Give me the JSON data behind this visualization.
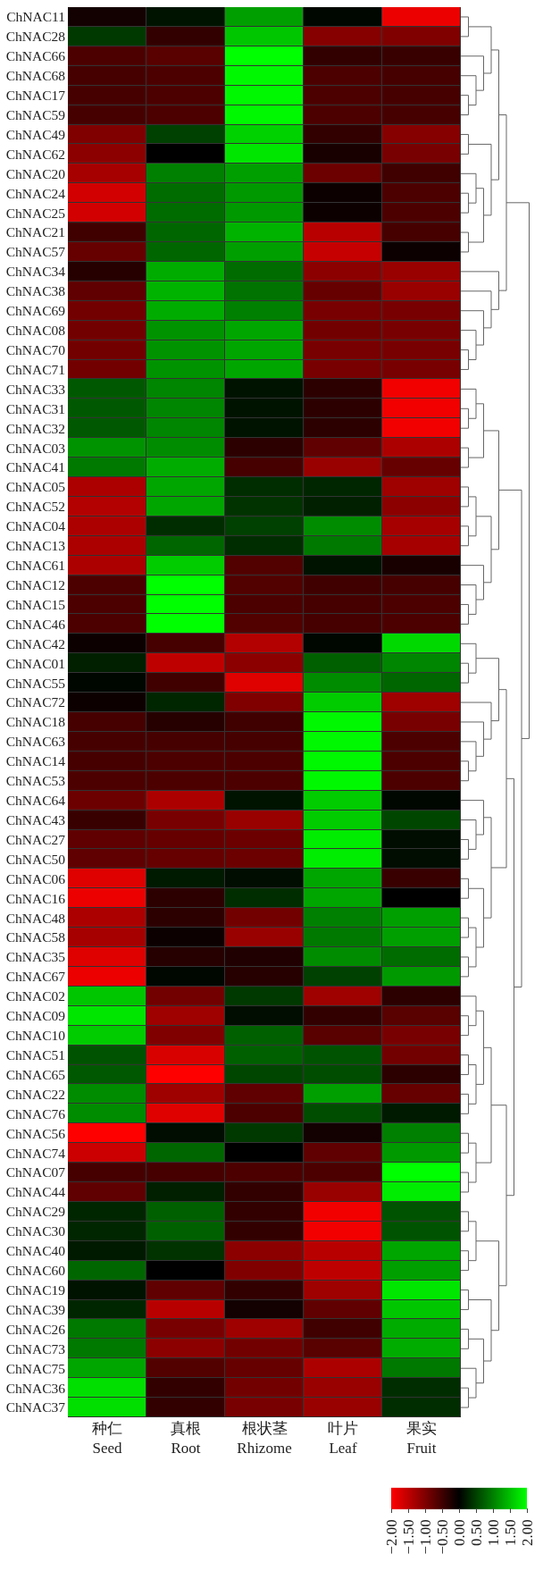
{
  "chart_data": {
    "type": "heatmap",
    "categories": [
      "种仁\nSeed",
      "真根\nRoot",
      "根状茎\nRhizome",
      "叶片\nLeaf",
      "果实\nFruit"
    ],
    "y_categories": [
      "ChNAC11",
      "ChNAC28",
      "ChNAC66",
      "ChNAC68",
      "ChNAC17",
      "ChNAC59",
      "ChNAC49",
      "ChNAC62",
      "ChNAC20",
      "ChNAC24",
      "ChNAC25",
      "ChNAC21",
      "ChNAC57",
      "ChNAC34",
      "ChNAC38",
      "ChNAC69",
      "ChNAC08",
      "ChNAC70",
      "ChNAC71",
      "ChNAC33",
      "ChNAC31",
      "ChNAC32",
      "ChNAC03",
      "ChNAC41",
      "ChNAC05",
      "ChNAC52",
      "ChNAC04",
      "ChNAC13",
      "ChNAC61",
      "ChNAC12",
      "ChNAC15",
      "ChNAC46",
      "ChNAC42",
      "ChNAC01",
      "ChNAC55",
      "ChNAC72",
      "ChNAC18",
      "ChNAC63",
      "ChNAC14",
      "ChNAC53",
      "ChNAC64",
      "ChNAC43",
      "ChNAC27",
      "ChNAC50",
      "ChNAC06",
      "ChNAC16",
      "ChNAC48",
      "ChNAC58",
      "ChNAC35",
      "ChNAC67",
      "ChNAC02",
      "ChNAC09",
      "ChNAC10",
      "ChNAC51",
      "ChNAC65",
      "ChNAC22",
      "ChNAC76",
      "ChNAC56",
      "ChNAC74",
      "ChNAC07",
      "ChNAC44",
      "ChNAC29",
      "ChNAC30",
      "ChNAC40",
      "ChNAC60",
      "ChNAC19",
      "ChNAC39",
      "ChNAC26",
      "ChNAC73",
      "ChNAC75",
      "ChNAC36",
      "ChNAC37"
    ],
    "cells": [
      [
        -0.15,
        0.15,
        1.25,
        0.05,
        -1.85
      ],
      [
        0.45,
        -0.4,
        1.55,
        -1.05,
        -1.0
      ],
      [
        -0.6,
        -0.7,
        2.0,
        -0.4,
        -0.45
      ],
      [
        -0.55,
        -0.6,
        1.95,
        -0.6,
        -0.55
      ],
      [
        -0.55,
        -0.6,
        1.95,
        -0.6,
        -0.55
      ],
      [
        -0.55,
        -0.6,
        1.95,
        -0.6,
        -0.55
      ],
      [
        -1.0,
        0.5,
        1.65,
        -0.4,
        -1.05
      ],
      [
        -1.1,
        0.0,
        1.8,
        -0.2,
        -0.95
      ],
      [
        -1.3,
        1.0,
        1.25,
        -0.85,
        -0.5
      ],
      [
        -1.65,
        0.85,
        1.2,
        -0.1,
        -0.6
      ],
      [
        -1.65,
        0.85,
        1.2,
        -0.1,
        -0.6
      ],
      [
        -0.5,
        0.8,
        1.4,
        -1.45,
        -0.55
      ],
      [
        -0.8,
        0.8,
        1.25,
        -1.55,
        -0.1
      ],
      [
        -0.3,
        1.35,
        0.85,
        -1.1,
        -1.2
      ],
      [
        -0.75,
        1.4,
        0.9,
        -0.8,
        -1.2
      ],
      [
        -0.9,
        1.35,
        1.0,
        -0.95,
        -0.95
      ],
      [
        -0.9,
        1.15,
        1.3,
        -0.9,
        -0.95
      ],
      [
        -0.9,
        1.15,
        1.3,
        -0.95,
        -0.95
      ],
      [
        -0.9,
        1.15,
        1.3,
        -0.95,
        -0.95
      ],
      [
        0.7,
        1.05,
        0.15,
        -0.35,
        -1.9
      ],
      [
        0.7,
        1.05,
        0.15,
        -0.35,
        -1.9
      ],
      [
        0.7,
        1.05,
        0.15,
        -0.35,
        -1.9
      ],
      [
        1.15,
        1.1,
        -0.35,
        -0.75,
        -1.35
      ],
      [
        0.95,
        1.35,
        -0.55,
        -1.2,
        -0.8
      ],
      [
        -1.35,
        1.3,
        0.35,
        0.3,
        -1.25
      ],
      [
        -1.4,
        1.3,
        0.4,
        0.25,
        -1.1
      ],
      [
        -1.35,
        0.35,
        0.5,
        1.1,
        -1.3
      ],
      [
        -1.35,
        0.8,
        0.35,
        0.95,
        -1.3
      ],
      [
        -1.35,
        1.6,
        -0.65,
        0.15,
        -0.2
      ],
      [
        -0.6,
        2.0,
        -0.65,
        -0.5,
        -0.55
      ],
      [
        -0.6,
        2.0,
        -0.6,
        -0.55,
        -0.6
      ],
      [
        -0.6,
        2.0,
        -0.65,
        -0.55,
        -0.6
      ],
      [
        -0.1,
        -0.55,
        -1.4,
        0.05,
        1.7
      ],
      [
        0.25,
        -1.5,
        -1.1,
        0.75,
        1.05
      ],
      [
        0.05,
        -0.5,
        -1.75,
        1.1,
        0.8
      ],
      [
        -0.1,
        0.3,
        -1.0,
        1.6,
        -1.25
      ],
      [
        -0.55,
        -0.3,
        -0.5,
        1.95,
        -0.95
      ],
      [
        -0.55,
        -0.55,
        -0.55,
        1.95,
        -0.6
      ],
      [
        -0.55,
        -0.6,
        -0.6,
        1.95,
        -0.6
      ],
      [
        -0.6,
        -0.6,
        -0.6,
        1.95,
        -0.6
      ],
      [
        -0.85,
        -1.35,
        0.15,
        1.6,
        0.05
      ],
      [
        -0.45,
        -0.95,
        -1.2,
        1.6,
        0.55
      ],
      [
        -0.75,
        -0.8,
        -0.85,
        1.85,
        0.1
      ],
      [
        -0.75,
        -0.8,
        -0.85,
        1.85,
        0.1
      ],
      [
        -1.75,
        0.2,
        0.1,
        1.3,
        -0.45
      ],
      [
        -1.85,
        -0.35,
        0.35,
        1.3,
        0.0
      ],
      [
        -1.35,
        -0.35,
        -0.9,
        1.0,
        1.25
      ],
      [
        -1.3,
        -0.1,
        -1.2,
        0.95,
        1.25
      ],
      [
        -1.75,
        -0.3,
        -0.25,
        1.1,
        0.85
      ],
      [
        -1.85,
        0.05,
        -0.3,
        0.5,
        1.2
      ],
      [
        1.55,
        -0.9,
        0.45,
        -1.25,
        -0.35
      ],
      [
        1.8,
        -1.25,
        0.1,
        -0.4,
        -0.7
      ],
      [
        1.6,
        -1.0,
        0.75,
        -0.7,
        -0.95
      ],
      [
        0.65,
        -1.7,
        0.75,
        0.65,
        -0.9
      ],
      [
        0.7,
        -2.0,
        0.55,
        0.6,
        -0.35
      ],
      [
        1.1,
        -1.25,
        -0.75,
        1.25,
        -0.8
      ],
      [
        1.1,
        -1.75,
        -0.6,
        0.6,
        0.2
      ],
      [
        -2.0,
        0.1,
        0.45,
        -0.15,
        1.0
      ],
      [
        -1.6,
        0.8,
        0.0,
        -0.75,
        1.2
      ],
      [
        -0.55,
        -0.55,
        -0.6,
        -0.6,
        2.0
      ],
      [
        -0.75,
        0.25,
        -0.4,
        -1.2,
        1.85
      ],
      [
        0.3,
        0.75,
        -0.4,
        -1.9,
        0.65
      ],
      [
        0.3,
        0.75,
        -0.4,
        -1.9,
        0.65
      ],
      [
        0.2,
        0.4,
        -1.1,
        -1.45,
        1.3
      ],
      [
        0.8,
        0.0,
        -1.0,
        -1.5,
        1.25
      ],
      [
        0.15,
        -0.75,
        -0.4,
        -1.25,
        1.8
      ],
      [
        0.3,
        -1.45,
        -0.15,
        -0.75,
        1.55
      ],
      [
        0.95,
        -0.95,
        -1.25,
        -0.5,
        1.35
      ],
      [
        0.95,
        -1.1,
        -0.9,
        -0.7,
        1.35
      ],
      [
        1.3,
        -0.65,
        -0.8,
        -1.35,
        0.95
      ],
      [
        1.75,
        -0.4,
        -0.9,
        -1.2,
        0.35
      ],
      [
        1.75,
        -0.4,
        -0.95,
        -1.2,
        0.35
      ]
    ],
    "clim": [
      -2,
      2
    ],
    "cticks": [
      {
        "value": -2,
        "label": "−2.00"
      },
      {
        "value": -1.5,
        "label": "−1.50"
      },
      {
        "value": -1,
        "label": "−1.00"
      },
      {
        "value": -0.5,
        "label": "−0.50"
      },
      {
        "value": 0,
        "label": "0.00"
      },
      {
        "value": 0.5,
        "label": "0.50"
      },
      {
        "value": 1,
        "label": "1.00"
      },
      {
        "value": 1.5,
        "label": "1.50"
      },
      {
        "value": 2,
        "label": "2.00"
      }
    ]
  }
}
